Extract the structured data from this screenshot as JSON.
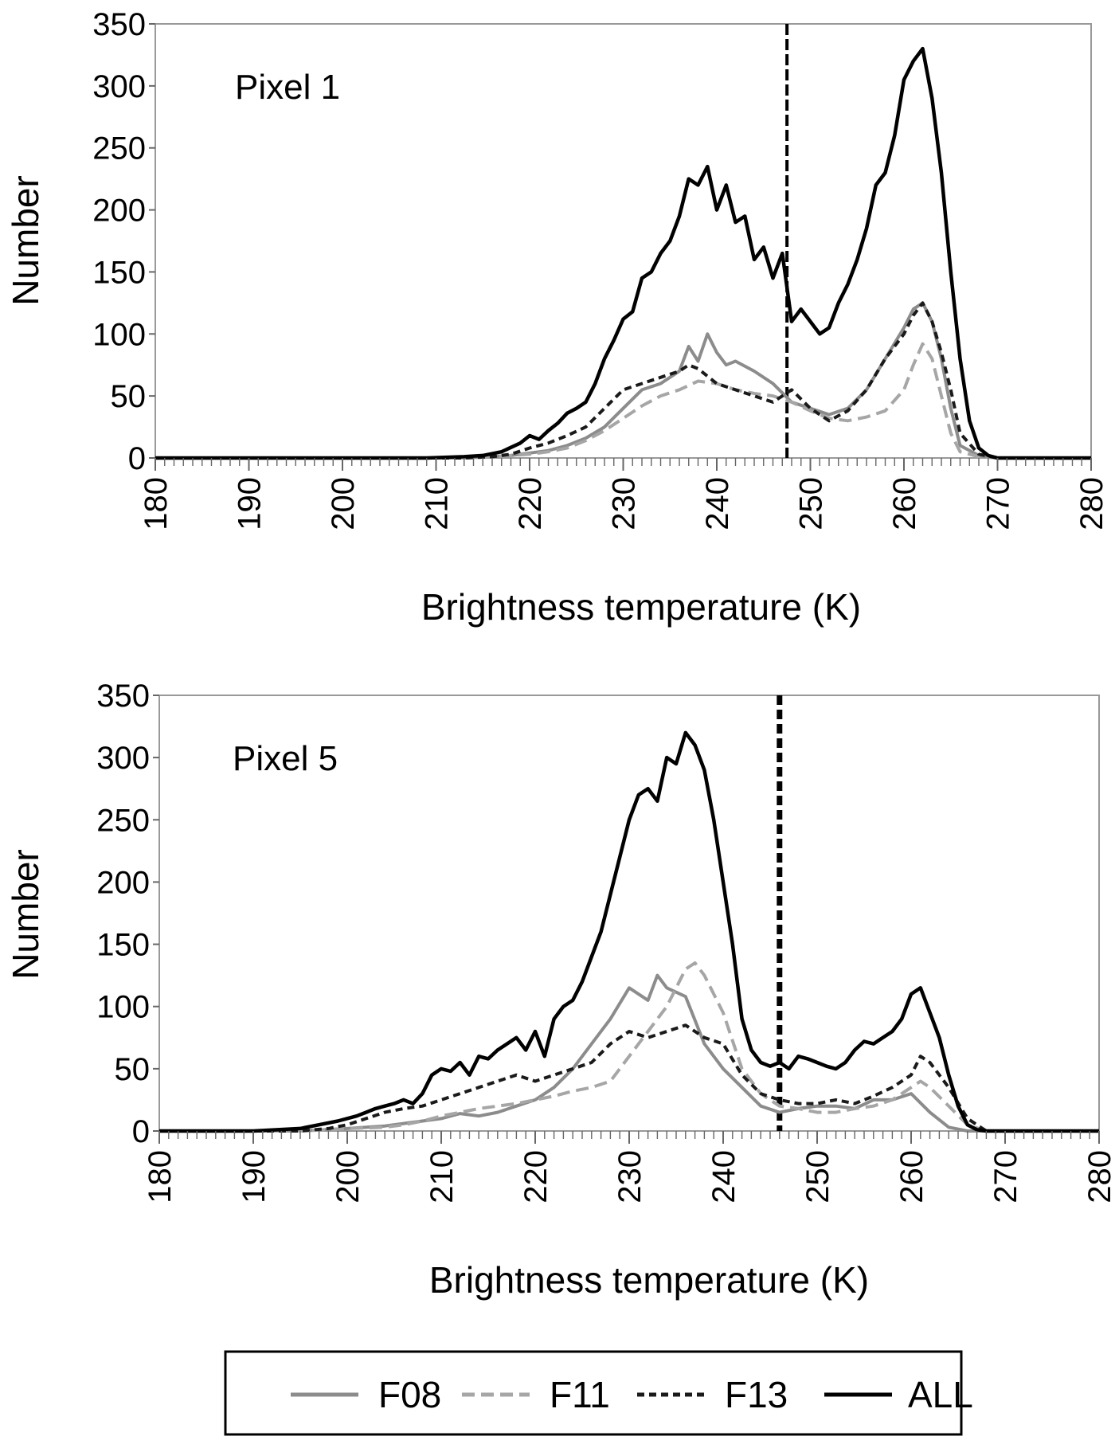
{
  "legend": {
    "items": [
      {
        "label": "F08",
        "color": "#8c8c8c",
        "dash": "solid"
      },
      {
        "label": "F11",
        "color": "#a6a6a6",
        "dash": "dashed"
      },
      {
        "label": "F13",
        "color": "#1a1a1a",
        "dash": "dashed"
      },
      {
        "label": "ALL",
        "color": "#000000",
        "dash": "solid"
      }
    ]
  },
  "chart_data": [
    {
      "type": "line",
      "panel_label": "Pixel 1",
      "xlabel": "Brightness temperature (K)",
      "ylabel": "Number",
      "xlim": [
        180,
        280
      ],
      "ylim": [
        0,
        350
      ],
      "xticks": [
        "180",
        "190",
        "200",
        "210",
        "220",
        "230",
        "240",
        "250",
        "260",
        "270",
        "280"
      ],
      "yticks": [
        "0",
        "50",
        "100",
        "150",
        "200",
        "250",
        "300",
        "350"
      ],
      "grid": false,
      "vline": 247.5,
      "series": [
        {
          "name": "F08",
          "x": [
            180,
            209,
            213,
            216,
            218,
            220,
            222,
            224,
            226,
            228,
            230,
            232,
            234,
            236,
            237,
            238,
            239,
            240,
            241,
            242,
            244,
            246,
            248,
            250,
            252,
            254,
            256,
            258,
            260,
            261,
            262,
            263,
            264,
            265,
            266,
            268,
            270,
            280
          ],
          "y": [
            0,
            0,
            0,
            1,
            2,
            4,
            6,
            10,
            16,
            25,
            40,
            55,
            60,
            70,
            90,
            78,
            100,
            85,
            75,
            78,
            70,
            60,
            45,
            40,
            35,
            40,
            55,
            80,
            105,
            120,
            125,
            110,
            80,
            40,
            10,
            2,
            0,
            0
          ]
        },
        {
          "name": "F11",
          "x": [
            180,
            209,
            213,
            216,
            218,
            220,
            222,
            224,
            226,
            228,
            230,
            232,
            234,
            236,
            238,
            240,
            242,
            244,
            246,
            248,
            250,
            252,
            254,
            256,
            258,
            260,
            261,
            262,
            263,
            264,
            265,
            266,
            268,
            270,
            280
          ],
          "y": [
            0,
            0,
            0,
            1,
            2,
            3,
            5,
            8,
            14,
            22,
            32,
            42,
            50,
            55,
            62,
            60,
            55,
            52,
            50,
            45,
            38,
            32,
            30,
            33,
            38,
            55,
            75,
            92,
            80,
            50,
            20,
            5,
            1,
            0,
            0
          ]
        },
        {
          "name": "F13",
          "x": [
            180,
            209,
            213,
            216,
            218,
            220,
            222,
            224,
            226,
            228,
            230,
            232,
            234,
            236,
            237,
            238,
            240,
            242,
            244,
            246,
            248,
            250,
            252,
            254,
            256,
            258,
            260,
            261,
            262,
            263,
            264,
            265,
            266,
            268,
            270,
            280
          ],
          "y": [
            0,
            0,
            0,
            1,
            3,
            8,
            12,
            18,
            25,
            40,
            55,
            60,
            65,
            70,
            75,
            72,
            60,
            55,
            50,
            45,
            55,
            40,
            30,
            38,
            55,
            80,
            100,
            115,
            125,
            110,
            85,
            55,
            20,
            3,
            0,
            0
          ]
        },
        {
          "name": "ALL",
          "x": [
            180,
            209,
            213,
            215,
            217,
            219,
            220,
            221,
            222,
            223,
            224,
            225,
            226,
            227,
            228,
            229,
            230,
            231,
            232,
            233,
            234,
            235,
            236,
            237,
            238,
            239,
            240,
            241,
            242,
            243,
            244,
            245,
            246,
            247,
            248,
            249,
            250,
            251,
            252,
            253,
            254,
            255,
            256,
            257,
            258,
            259,
            260,
            261,
            262,
            263,
            264,
            265,
            266,
            267,
            268,
            269,
            270,
            280
          ],
          "y": [
            0,
            0,
            1,
            2,
            5,
            12,
            18,
            15,
            22,
            28,
            36,
            40,
            45,
            60,
            80,
            95,
            112,
            118,
            145,
            150,
            165,
            175,
            195,
            225,
            220,
            235,
            200,
            220,
            190,
            195,
            160,
            170,
            145,
            165,
            110,
            120,
            110,
            100,
            105,
            125,
            140,
            160,
            185,
            220,
            230,
            260,
            305,
            320,
            330,
            290,
            230,
            150,
            80,
            30,
            8,
            2,
            0,
            0
          ]
        }
      ]
    },
    {
      "type": "line",
      "panel_label": "Pixel 5",
      "xlabel": "Brightness temperature (K)",
      "ylabel": "Number",
      "xlim": [
        180,
        280
      ],
      "ylim": [
        0,
        350
      ],
      "xticks": [
        "180",
        "190",
        "200",
        "210",
        "220",
        "230",
        "240",
        "250",
        "260",
        "270",
        "280"
      ],
      "yticks": [
        "0",
        "50",
        "100",
        "150",
        "200",
        "250",
        "300",
        "350"
      ],
      "grid": false,
      "vline": 246,
      "series": [
        {
          "name": "F08",
          "x": [
            180,
            195,
            200,
            204,
            206,
            208,
            210,
            212,
            214,
            216,
            218,
            220,
            222,
            224,
            226,
            228,
            230,
            232,
            233,
            234,
            236,
            238,
            240,
            242,
            244,
            246,
            248,
            250,
            252,
            254,
            256,
            258,
            260,
            262,
            264,
            266,
            268,
            280
          ],
          "y": [
            0,
            0,
            2,
            4,
            6,
            8,
            10,
            14,
            12,
            15,
            20,
            25,
            35,
            50,
            70,
            90,
            115,
            105,
            125,
            115,
            108,
            70,
            50,
            35,
            20,
            15,
            18,
            20,
            20,
            18,
            25,
            25,
            30,
            15,
            3,
            0,
            0,
            0
          ]
        },
        {
          "name": "F11",
          "x": [
            180,
            195,
            200,
            204,
            206,
            208,
            210,
            212,
            214,
            216,
            218,
            220,
            222,
            224,
            226,
            228,
            230,
            232,
            234,
            236,
            237,
            238,
            240,
            242,
            244,
            246,
            248,
            250,
            252,
            254,
            256,
            258,
            260,
            261,
            262,
            264,
            266,
            268,
            280
          ],
          "y": [
            0,
            0,
            2,
            3,
            5,
            8,
            12,
            15,
            18,
            20,
            22,
            25,
            28,
            32,
            35,
            40,
            60,
            80,
            100,
            130,
            135,
            125,
            95,
            50,
            30,
            20,
            18,
            15,
            15,
            18,
            20,
            25,
            35,
            40,
            35,
            20,
            5,
            0,
            0
          ]
        },
        {
          "name": "F13",
          "x": [
            180,
            195,
            198,
            200,
            202,
            204,
            206,
            208,
            210,
            212,
            214,
            216,
            218,
            220,
            222,
            224,
            226,
            228,
            230,
            232,
            234,
            236,
            238,
            240,
            242,
            244,
            246,
            248,
            250,
            252,
            254,
            256,
            258,
            260,
            261,
            262,
            264,
            266,
            268,
            280
          ],
          "y": [
            0,
            0,
            2,
            5,
            10,
            15,
            18,
            20,
            25,
            30,
            35,
            40,
            45,
            40,
            45,
            50,
            55,
            70,
            80,
            75,
            80,
            85,
            75,
            70,
            45,
            30,
            25,
            22,
            22,
            25,
            22,
            28,
            35,
            45,
            60,
            55,
            35,
            10,
            0,
            0
          ]
        },
        {
          "name": "ALL",
          "x": [
            180,
            190,
            195,
            197,
            199,
            201,
            202,
            203,
            204,
            205,
            206,
            207,
            208,
            209,
            210,
            211,
            212,
            213,
            214,
            215,
            216,
            217,
            218,
            219,
            220,
            221,
            222,
            223,
            224,
            225,
            226,
            227,
            228,
            229,
            230,
            231,
            232,
            233,
            234,
            235,
            236,
            237,
            238,
            239,
            240,
            241,
            242,
            243,
            244,
            245,
            246,
            247,
            248,
            249,
            250,
            251,
            252,
            253,
            254,
            255,
            256,
            257,
            258,
            259,
            260,
            261,
            262,
            263,
            264,
            265,
            266,
            267,
            268,
            280
          ],
          "y": [
            0,
            0,
            2,
            5,
            8,
            12,
            15,
            18,
            20,
            22,
            25,
            22,
            30,
            45,
            50,
            48,
            55,
            45,
            60,
            58,
            65,
            70,
            75,
            65,
            80,
            60,
            90,
            100,
            105,
            120,
            140,
            160,
            190,
            220,
            250,
            270,
            275,
            265,
            300,
            295,
            320,
            310,
            290,
            250,
            200,
            150,
            90,
            65,
            55,
            52,
            55,
            50,
            60,
            58,
            55,
            52,
            50,
            55,
            65,
            72,
            70,
            75,
            80,
            90,
            110,
            115,
            95,
            75,
            45,
            20,
            5,
            1,
            0,
            0
          ]
        }
      ]
    }
  ]
}
